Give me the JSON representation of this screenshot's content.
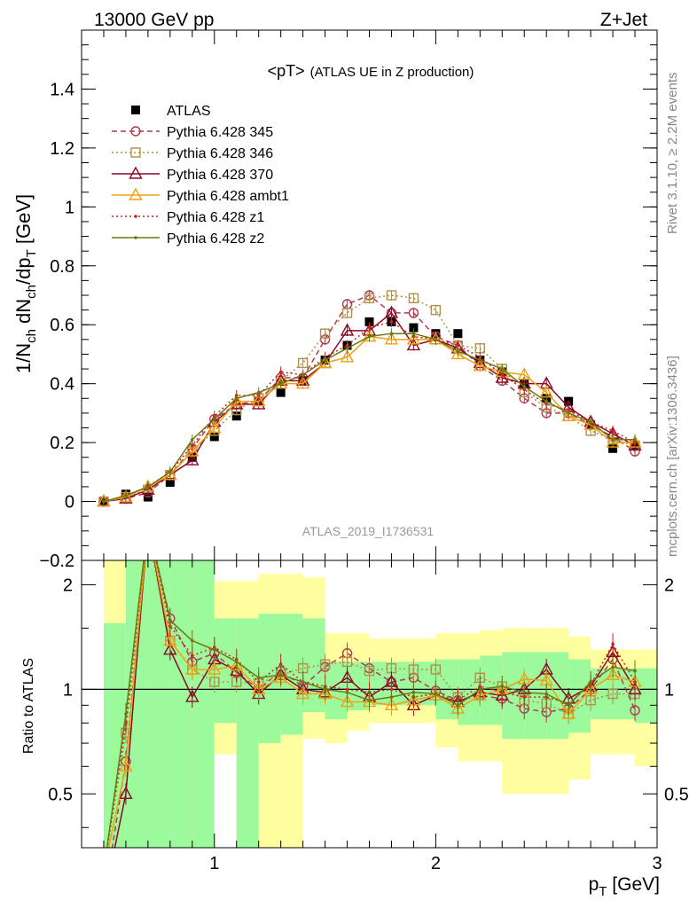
{
  "header": {
    "left": "13000 GeV pp",
    "right": "Z+Jet"
  },
  "side_labels": {
    "rivet": "Rivet 3.1.10, ≥ 2.2M events",
    "mcplots": "mcplots.cern.ch [arXiv:1306.3436]"
  },
  "watermark": "ATLAS_2019_I1736531",
  "colors": {
    "band_yellow": "#ffff9f",
    "band_green": "#9cfa9c",
    "atlas": "#000000"
  },
  "chart_data": [
    {
      "type": "line",
      "title": "<pT>",
      "title_suffix": "(ATLAS UE in Z production)",
      "ylabel_parts": [
        "1/N",
        "ch",
        " dN",
        "ch",
        "/dp",
        "T",
        " [GeV]"
      ],
      "xlim": [
        0.4,
        3.0
      ],
      "ylim": [
        -0.2,
        1.6
      ],
      "yticks": [
        -0.2,
        0,
        0.2,
        0.4,
        0.6,
        0.8,
        1,
        1.2,
        1.4
      ],
      "ytick_labels": [
        "−0.2",
        "0",
        "0.2",
        "0.4",
        "0.6",
        "0.8",
        "1",
        "1.2",
        "1.4"
      ],
      "legend_position": "top-left",
      "x": [
        0.5,
        0.6,
        0.7,
        0.8,
        0.9,
        1.0,
        1.1,
        1.2,
        1.3,
        1.4,
        1.5,
        1.6,
        1.7,
        1.8,
        1.9,
        2.0,
        2.1,
        2.2,
        2.3,
        2.4,
        2.5,
        2.6,
        2.7,
        2.8,
        2.9
      ],
      "series": [
        {
          "name": "ATLAS",
          "color": "#000000",
          "marker": "square-filled",
          "line": "none",
          "values": [
            0.0,
            0.025,
            0.015,
            0.065,
            0.15,
            0.22,
            0.29,
            0.34,
            0.37,
            0.41,
            0.48,
            0.53,
            0.61,
            0.61,
            0.59,
            0.57,
            0.57,
            0.48,
            0.44,
            0.4,
            0.35,
            0.34,
            0.26,
            0.18,
            0.19
          ]
        },
        {
          "name": "Pythia 6.428 345",
          "color": "#b03a4e",
          "marker": "circle-open",
          "line": "dashed",
          "values": [
            0.0,
            0.01,
            0.03,
            0.09,
            0.18,
            0.28,
            0.33,
            0.34,
            0.42,
            0.42,
            0.55,
            0.67,
            0.7,
            0.64,
            0.64,
            0.56,
            0.53,
            0.46,
            0.41,
            0.35,
            0.3,
            0.3,
            0.26,
            0.22,
            0.17
          ]
        },
        {
          "name": "Pythia 6.428 346",
          "color": "#b0904a",
          "marker": "square-open",
          "line": "dotted",
          "values": [
            0.0,
            0.015,
            0.04,
            0.09,
            0.17,
            0.24,
            0.31,
            0.35,
            0.41,
            0.47,
            0.57,
            0.64,
            0.69,
            0.7,
            0.69,
            0.65,
            0.53,
            0.52,
            0.45,
            0.37,
            0.32,
            0.29,
            0.24,
            0.21,
            0.19
          ]
        },
        {
          "name": "Pythia 6.428 370",
          "color": "#8b0a26",
          "marker": "triangle-open",
          "line": "solid",
          "values": [
            0.0,
            0.01,
            0.04,
            0.09,
            0.14,
            0.27,
            0.33,
            0.33,
            0.41,
            0.41,
            0.47,
            0.58,
            0.58,
            0.64,
            0.53,
            0.55,
            0.52,
            0.47,
            0.42,
            0.4,
            0.4,
            0.32,
            0.27,
            0.23,
            0.19
          ]
        },
        {
          "name": "Pythia 6.428 ambt1",
          "color": "#f0a010",
          "marker": "triangle-open",
          "line": "solid",
          "values": [
            0.0,
            0.015,
            0.05,
            0.09,
            0.17,
            0.25,
            0.34,
            0.34,
            0.4,
            0.4,
            0.47,
            0.49,
            0.56,
            0.55,
            0.55,
            0.55,
            0.5,
            0.46,
            0.44,
            0.43,
            0.37,
            0.29,
            0.26,
            0.2,
            0.2
          ]
        },
        {
          "name": "Pythia 6.428 z1",
          "color": "#d02020",
          "marker": "dot",
          "line": "dotted",
          "values": [
            0.0,
            0.02,
            0.05,
            0.1,
            0.19,
            0.29,
            0.36,
            0.36,
            0.44,
            0.43,
            0.49,
            0.53,
            0.59,
            0.61,
            0.56,
            0.55,
            0.53,
            0.49,
            0.43,
            0.38,
            0.33,
            0.31,
            0.27,
            0.24,
            0.2
          ]
        },
        {
          "name": "Pythia 6.428 z2",
          "color": "#6b7a10",
          "marker": "dot",
          "line": "solid",
          "values": [
            0.0,
            0.02,
            0.05,
            0.1,
            0.21,
            0.28,
            0.35,
            0.37,
            0.4,
            0.43,
            0.48,
            0.52,
            0.56,
            0.57,
            0.57,
            0.55,
            0.51,
            0.48,
            0.45,
            0.39,
            0.34,
            0.3,
            0.27,
            0.21,
            0.21
          ]
        }
      ]
    },
    {
      "type": "line",
      "ylabel": "Ratio to ATLAS",
      "xlabel_parts": [
        "p",
        "T",
        " [GeV]"
      ],
      "xlim": [
        0.4,
        3.0
      ],
      "ylim": [
        0.35,
        2.35
      ],
      "log_y": true,
      "xticks": [
        1,
        2,
        3
      ],
      "xtick_labels": [
        "1",
        "2",
        "3"
      ],
      "yticks": [
        0.5,
        1,
        2
      ],
      "ytick_labels": [
        "0.5",
        "1",
        "2"
      ],
      "reference": 1,
      "band_x": [
        0.55,
        0.65,
        0.75,
        0.85,
        0.95,
        1.05,
        1.15,
        1.25,
        1.35,
        1.45,
        1.55,
        1.65,
        1.75,
        1.85,
        1.95,
        2.05,
        2.15,
        2.25,
        2.35,
        2.45,
        2.55,
        2.65,
        2.75,
        2.85,
        2.95
      ],
      "band_yellow_low": [
        0.3,
        0.3,
        0.3,
        0.3,
        0.3,
        0.65,
        0.3,
        0.3,
        0.3,
        0.72,
        0.7,
        0.76,
        0.8,
        0.8,
        0.8,
        0.68,
        0.62,
        0.62,
        0.5,
        0.5,
        0.5,
        0.55,
        0.65,
        0.65,
        0.6
      ],
      "band_yellow_high": [
        2.5,
        2.5,
        2.5,
        2.5,
        2.5,
        2.05,
        2.05,
        2.15,
        2.15,
        2.1,
        1.45,
        1.45,
        1.4,
        1.4,
        1.4,
        1.45,
        1.45,
        1.48,
        1.5,
        1.5,
        1.5,
        1.42,
        1.3,
        1.3,
        1.3
      ],
      "band_green_low": [
        0.3,
        0.3,
        0.3,
        0.3,
        0.3,
        0.8,
        0.3,
        0.7,
        0.74,
        0.86,
        0.82,
        0.87,
        0.9,
        0.9,
        0.9,
        0.82,
        0.79,
        0.79,
        0.72,
        0.72,
        0.72,
        0.75,
        0.82,
        0.82,
        0.8
      ],
      "band_green_high": [
        1.55,
        2.5,
        2.5,
        2.5,
        2.5,
        1.6,
        1.6,
        1.65,
        1.65,
        1.6,
        1.2,
        1.2,
        1.2,
        1.2,
        1.2,
        1.22,
        1.22,
        1.25,
        1.28,
        1.28,
        1.28,
        1.22,
        1.15,
        1.15,
        1.15
      ],
      "ratios": [
        {
          "name": "Pythia 6.428 345",
          "values": [
            0.2,
            0.62,
            3.0,
            1.6,
            1.2,
            1.27,
            1.12,
            1.0,
            1.13,
            1.02,
            1.16,
            1.27,
            1.15,
            1.05,
            1.08,
            0.99,
            0.93,
            0.96,
            0.94,
            0.88,
            0.86,
            0.88,
            1.0,
            1.22,
            0.87
          ]
        },
        {
          "name": "Pythia 6.428 346",
          "values": [
            0.3,
            0.75,
            2.8,
            1.38,
            1.14,
            1.05,
            1.05,
            1.04,
            1.1,
            1.15,
            1.18,
            1.2,
            1.13,
            1.15,
            1.14,
            1.14,
            0.95,
            1.08,
            1.02,
            0.93,
            0.91,
            0.85,
            0.93,
            0.97,
            0.97
          ]
        },
        {
          "name": "Pythia 6.428 370",
          "values": [
            0.2,
            0.5,
            3.0,
            1.3,
            0.95,
            1.22,
            1.13,
            0.97,
            1.1,
            1.0,
            0.98,
            1.08,
            0.95,
            1.05,
            0.9,
            0.96,
            0.92,
            0.98,
            0.96,
            1.0,
            1.14,
            0.94,
            1.02,
            1.28,
            1.0
          ]
        },
        {
          "name": "Pythia 6.428 ambt1",
          "values": [
            0.3,
            0.6,
            3.0,
            1.38,
            1.14,
            1.14,
            1.17,
            1.0,
            1.08,
            0.97,
            0.97,
            0.92,
            0.92,
            0.9,
            0.93,
            0.96,
            0.88,
            0.96,
            1.0,
            1.07,
            1.06,
            0.85,
            1.0,
            1.1,
            1.05
          ]
        },
        {
          "name": "Pythia 6.428 z1",
          "values": [
            0.3,
            0.8,
            3.0,
            1.52,
            1.25,
            1.32,
            1.22,
            1.05,
            1.18,
            1.05,
            1.02,
            1.0,
            0.98,
            1.0,
            0.95,
            0.97,
            0.93,
            1.02,
            0.98,
            0.95,
            0.95,
            0.91,
            1.03,
            1.35,
            1.05
          ]
        },
        {
          "name": "Pythia 6.428 z2",
          "values": [
            0.3,
            0.85,
            3.0,
            1.58,
            1.38,
            1.3,
            1.2,
            1.08,
            1.1,
            1.05,
            1.0,
            0.98,
            0.93,
            0.95,
            0.98,
            0.97,
            0.9,
            1.0,
            1.02,
            0.98,
            0.97,
            0.9,
            1.05,
            1.16,
            1.13
          ]
        }
      ]
    }
  ]
}
